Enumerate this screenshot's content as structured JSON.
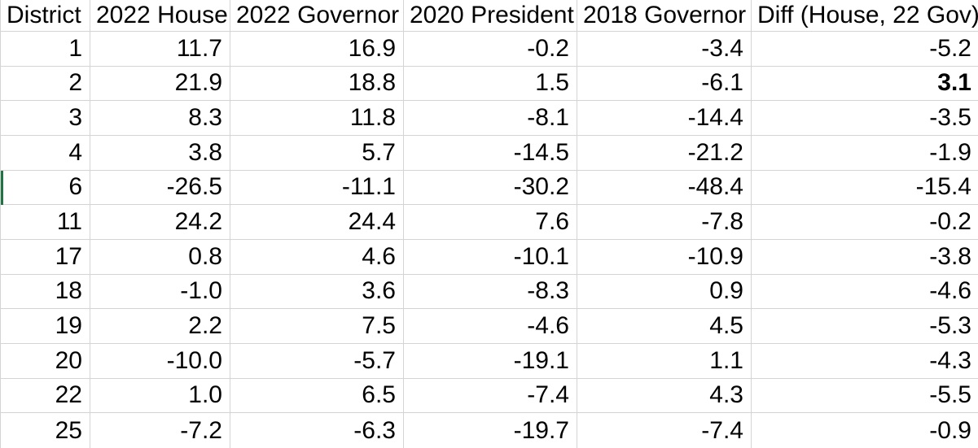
{
  "table": {
    "columns": [
      {
        "label": "District"
      },
      {
        "label": "2022 House"
      },
      {
        "label": "2022 Governor"
      },
      {
        "label": "2020 President"
      },
      {
        "label": "2018 Governor"
      },
      {
        "label": "Diff (House, 22 Gov)"
      }
    ],
    "rows": [
      {
        "cells": [
          "1",
          "11.7",
          "16.9",
          "-0.2",
          "-3.4",
          "-5.2"
        ]
      },
      {
        "cells": [
          "2",
          "21.9",
          "18.8",
          "1.5",
          "-6.1",
          "3.1"
        ],
        "bold_cells": [
          5
        ]
      },
      {
        "cells": [
          "3",
          "8.3",
          "11.8",
          "-8.1",
          "-14.4",
          "-3.5"
        ]
      },
      {
        "cells": [
          "4",
          "3.8",
          "5.7",
          "-14.5",
          "-21.2",
          "-1.9"
        ]
      },
      {
        "cells": [
          "6",
          "-26.5",
          "-11.1",
          "-30.2",
          "-48.4",
          "-15.4"
        ],
        "left_marker": true
      },
      {
        "cells": [
          "11",
          "24.2",
          "24.4",
          "7.6",
          "-7.8",
          "-0.2"
        ]
      },
      {
        "cells": [
          "17",
          "0.8",
          "4.6",
          "-10.1",
          "-10.9",
          "-3.8"
        ]
      },
      {
        "cells": [
          "18",
          "-1.0",
          "3.6",
          "-8.3",
          "0.9",
          "-4.6"
        ]
      },
      {
        "cells": [
          "19",
          "2.2",
          "7.5",
          "-4.6",
          "4.5",
          "-5.3"
        ]
      },
      {
        "cells": [
          "20",
          "-10.0",
          "-5.7",
          "-19.1",
          "1.1",
          "-4.3"
        ]
      },
      {
        "cells": [
          "22",
          "1.0",
          "6.5",
          "-7.4",
          "4.3",
          "-5.5"
        ]
      },
      {
        "cells": [
          "25",
          "-7.2",
          "-6.3",
          "-19.7",
          "-7.4",
          "-0.9"
        ]
      }
    ]
  },
  "colors": {
    "gridline": "#d4d4d4",
    "text": "#000000",
    "background": "#ffffff",
    "row_marker_green": "#217346"
  }
}
